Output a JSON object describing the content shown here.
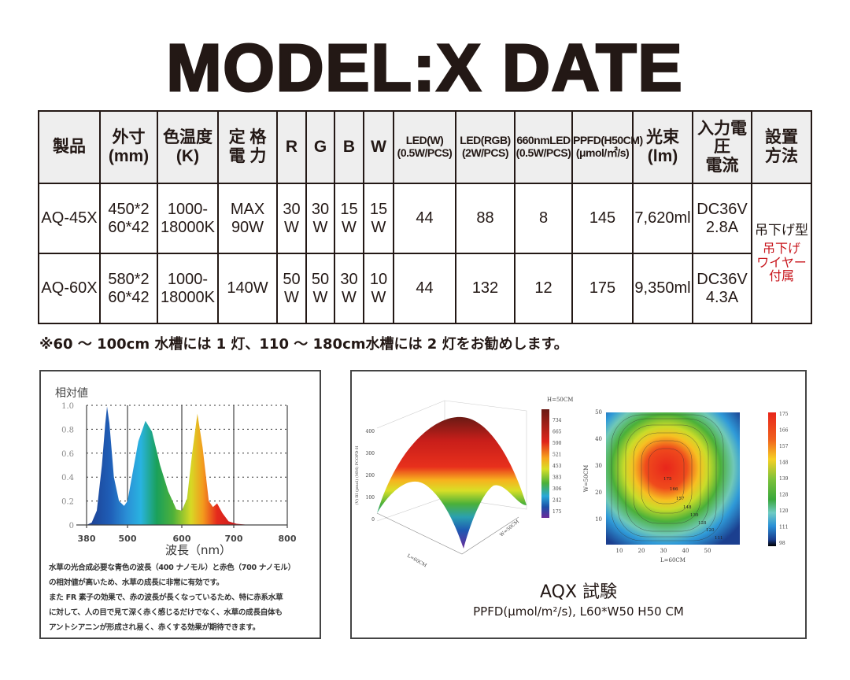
{
  "title": "MODEL:X DATE",
  "table": {
    "headers": [
      "製品",
      "外寸\n(mm)",
      "色温度\n(K)",
      "定 格\n電 力",
      "R",
      "G",
      "B",
      "W",
      "LED(W)\n(0.5W/PCS)",
      "LED(RGB)\n(2W/PCS)",
      "660nmLED\n(0.5W/PCS)",
      "PPFD(H50CM)\n(μmol/㎡/s)",
      "光束\n(lm)",
      "入力電圧\n電流",
      "設置\n方法"
    ],
    "rows": [
      [
        "AQ-45X",
        "450*2\n60*42",
        "1000-\n18000K",
        "MAX\n90W",
        "30\nW",
        "30\nW",
        "15\nW",
        "15\nW",
        "44",
        "88",
        "8",
        "145",
        "7,620ml",
        "DC36V\n2.8A"
      ],
      [
        "AQ-60X",
        "580*2\n60*42",
        "1000-\n18000K",
        "140W",
        "50\nW",
        "50\nW",
        "30\nW",
        "10\nW",
        "44",
        "132",
        "12",
        "175",
        "9,350ml",
        "DC36V\n4.3A"
      ]
    ],
    "install": {
      "main": "吊下げ型",
      "note": "吊下げ\nワイヤー\n付属",
      "note_color": "#c8161d"
    }
  },
  "note": "※60 ～ 100cm 水槽には 1 灯、110 ～ 180cm水槽には 2 灯をお勧めします。",
  "spectrum": {
    "description": "水草の光合成必要な青色の波長（400 ナノモル）と赤色（700 ナノモル）\nの相対値が高いため、水草の成長に非常に有効です。\nまた FR 素子の効果で、赤の波長が長くなっているため、特に赤系水草\nに対して、人の目で見て深く赤く感じるだけでなく、水草の成長自体も\nアントシアニンが形成され易く、赤くする効果が期待できます。"
  },
  "chart_data": {
    "type": "area",
    "ylabel": "相対値",
    "xlabel": "波長（nm）",
    "x_ticks": [
      380,
      500,
      600,
      700,
      800
    ],
    "y_ticks": [
      "0",
      "0.2",
      "0.4",
      "0.6",
      "0.8",
      "1.0"
    ],
    "ylim": [
      0,
      1
    ],
    "xlim": [
      380,
      800
    ],
    "grid": "dotted horizontal",
    "x": [
      380,
      395,
      410,
      425,
      435,
      440,
      447,
      460,
      475,
      490,
      500,
      510,
      520,
      533,
      545,
      560,
      575,
      590,
      600,
      610,
      620,
      630,
      640,
      652,
      660,
      668,
      678,
      690,
      705,
      730,
      800
    ],
    "y": [
      0,
      0.02,
      0.12,
      0.5,
      0.85,
      0.99,
      0.85,
      0.4,
      0.2,
      0.16,
      0.2,
      0.45,
      0.7,
      0.87,
      0.78,
      0.5,
      0.28,
      0.13,
      0.12,
      0.22,
      0.6,
      0.93,
      0.65,
      0.2,
      0.15,
      0.18,
      0.1,
      0.03,
      0.01,
      0,
      0
    ]
  },
  "ppfd": {
    "surface_colorbar_title": "H=50CM",
    "surface_colorbar_ticks": [
      "734",
      "665",
      "590",
      "521",
      "453",
      "383",
      "306",
      "242",
      "175"
    ],
    "surface_zlabel": "(V) BI (pmol) (MM) PCOPD-H",
    "surface_z_ticks": [
      "400",
      "300",
      "200",
      "100",
      "0"
    ],
    "surface_xlabel": "L=60CM",
    "surface_ylabel": "W=50CM",
    "contour_xlabel": "L=60CM",
    "contour_ylabel": "W=50CM",
    "contour_x_ticks": [
      "10",
      "20",
      "30",
      "40",
      "50"
    ],
    "contour_y_ticks": [
      "10",
      "20",
      "30",
      "40",
      "50"
    ],
    "contour_colorbar_ticks": [
      "175",
      "166",
      "157",
      "148",
      "139",
      "128",
      "120",
      "111",
      "98"
    ],
    "contour_labels": [
      "175",
      "166",
      "157",
      "148",
      "139",
      "128",
      "120",
      "111"
    ],
    "title": "AQX 試験",
    "subtitle": "PPFD(μmol/m²/s), L60*W50 H50 CM"
  }
}
